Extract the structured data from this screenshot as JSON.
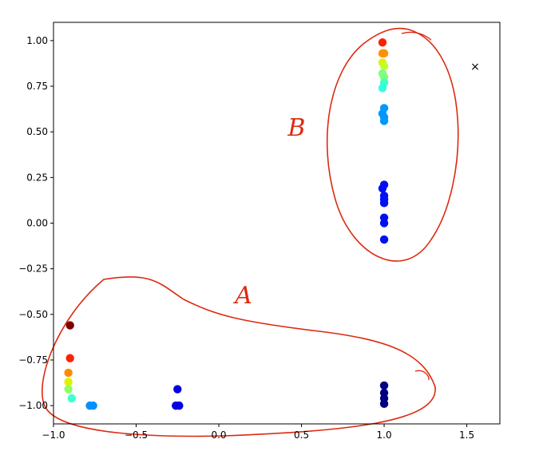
{
  "chart_data": {
    "type": "scatter",
    "title": "",
    "xlabel": "",
    "ylabel": "",
    "xlim": [
      -1.0,
      1.7
    ],
    "ylim": [
      -1.1,
      1.1
    ],
    "grid": false,
    "x_ticks": [
      -1.0,
      -0.5,
      0.0,
      0.5,
      1.0,
      1.5
    ],
    "x_tick_labels": [
      "−1.0",
      "−0.5",
      "0.0",
      "0.5",
      "1.0",
      "1.5"
    ],
    "y_ticks": [
      1.0,
      0.75,
      0.5,
      0.25,
      0.0,
      -0.25,
      -0.5,
      -0.75,
      -1.0
    ],
    "y_tick_labels": [
      "1.00",
      "0.75",
      "0.50",
      "0.25",
      "0.00",
      "−0.25",
      "−0.50",
      "−0.75",
      "−1.00"
    ],
    "points": [
      {
        "x": -0.9,
        "y": -0.56,
        "color": "#7f0000"
      },
      {
        "x": -0.9,
        "y": -0.74,
        "color": "#ff2000"
      },
      {
        "x": -0.91,
        "y": -0.82,
        "color": "#ff8c00"
      },
      {
        "x": -0.91,
        "y": -0.87,
        "color": "#e0f000"
      },
      {
        "x": -0.91,
        "y": -0.91,
        "color": "#90ff60"
      },
      {
        "x": -0.89,
        "y": -0.96,
        "color": "#40ffd0"
      },
      {
        "x": -0.78,
        "y": -1.0,
        "color": "#0090ff"
      },
      {
        "x": -0.76,
        "y": -1.0,
        "color": "#0090ff"
      },
      {
        "x": -0.25,
        "y": -0.91,
        "color": "#0000e0"
      },
      {
        "x": -0.26,
        "y": -1.0,
        "color": "#0000e0"
      },
      {
        "x": -0.24,
        "y": -1.0,
        "color": "#0000e0"
      },
      {
        "x": 1.0,
        "y": -0.89,
        "color": "#000080"
      },
      {
        "x": 1.0,
        "y": -0.93,
        "color": "#000080"
      },
      {
        "x": 1.0,
        "y": -0.96,
        "color": "#000080"
      },
      {
        "x": 1.0,
        "y": -0.99,
        "color": "#000080"
      },
      {
        "x": 0.99,
        "y": 0.99,
        "color": "#ff2000"
      },
      {
        "x": 0.99,
        "y": 0.93,
        "color": "#ff9000"
      },
      {
        "x": 1.0,
        "y": 0.93,
        "color": "#ff9000"
      },
      {
        "x": 0.99,
        "y": 0.88,
        "color": "#e0f000"
      },
      {
        "x": 1.0,
        "y": 0.86,
        "color": "#c0ff30"
      },
      {
        "x": 0.99,
        "y": 0.82,
        "color": "#80ff80"
      },
      {
        "x": 1.0,
        "y": 0.8,
        "color": "#80ff80"
      },
      {
        "x": 1.0,
        "y": 0.77,
        "color": "#40ffc0"
      },
      {
        "x": 0.99,
        "y": 0.74,
        "color": "#30ffe0"
      },
      {
        "x": 1.0,
        "y": 0.63,
        "color": "#0098ff"
      },
      {
        "x": 0.99,
        "y": 0.6,
        "color": "#0098ff"
      },
      {
        "x": 1.0,
        "y": 0.58,
        "color": "#0098ff"
      },
      {
        "x": 1.0,
        "y": 0.56,
        "color": "#0098ff"
      },
      {
        "x": 1.0,
        "y": 0.21,
        "color": "#0010f0"
      },
      {
        "x": 0.99,
        "y": 0.19,
        "color": "#0010f0"
      },
      {
        "x": 1.0,
        "y": 0.15,
        "color": "#0010f0"
      },
      {
        "x": 1.0,
        "y": 0.13,
        "color": "#0010f0"
      },
      {
        "x": 1.0,
        "y": 0.11,
        "color": "#0010f0"
      },
      {
        "x": 1.0,
        "y": 0.03,
        "color": "#0010f0"
      },
      {
        "x": 1.0,
        "y": 0.0,
        "color": "#0010f0"
      },
      {
        "x": 1.0,
        "y": -0.09,
        "color": "#0010f0"
      }
    ],
    "markers": [
      {
        "x": 1.55,
        "y": 0.86,
        "symbol": "×",
        "color": "#000000"
      }
    ],
    "annotations": [
      {
        "label": "A",
        "x": 0.15,
        "y": -0.44,
        "color": "#dd2a10"
      },
      {
        "label": "B",
        "x": 0.47,
        "y": 0.48,
        "color": "#dd2a10"
      }
    ]
  }
}
